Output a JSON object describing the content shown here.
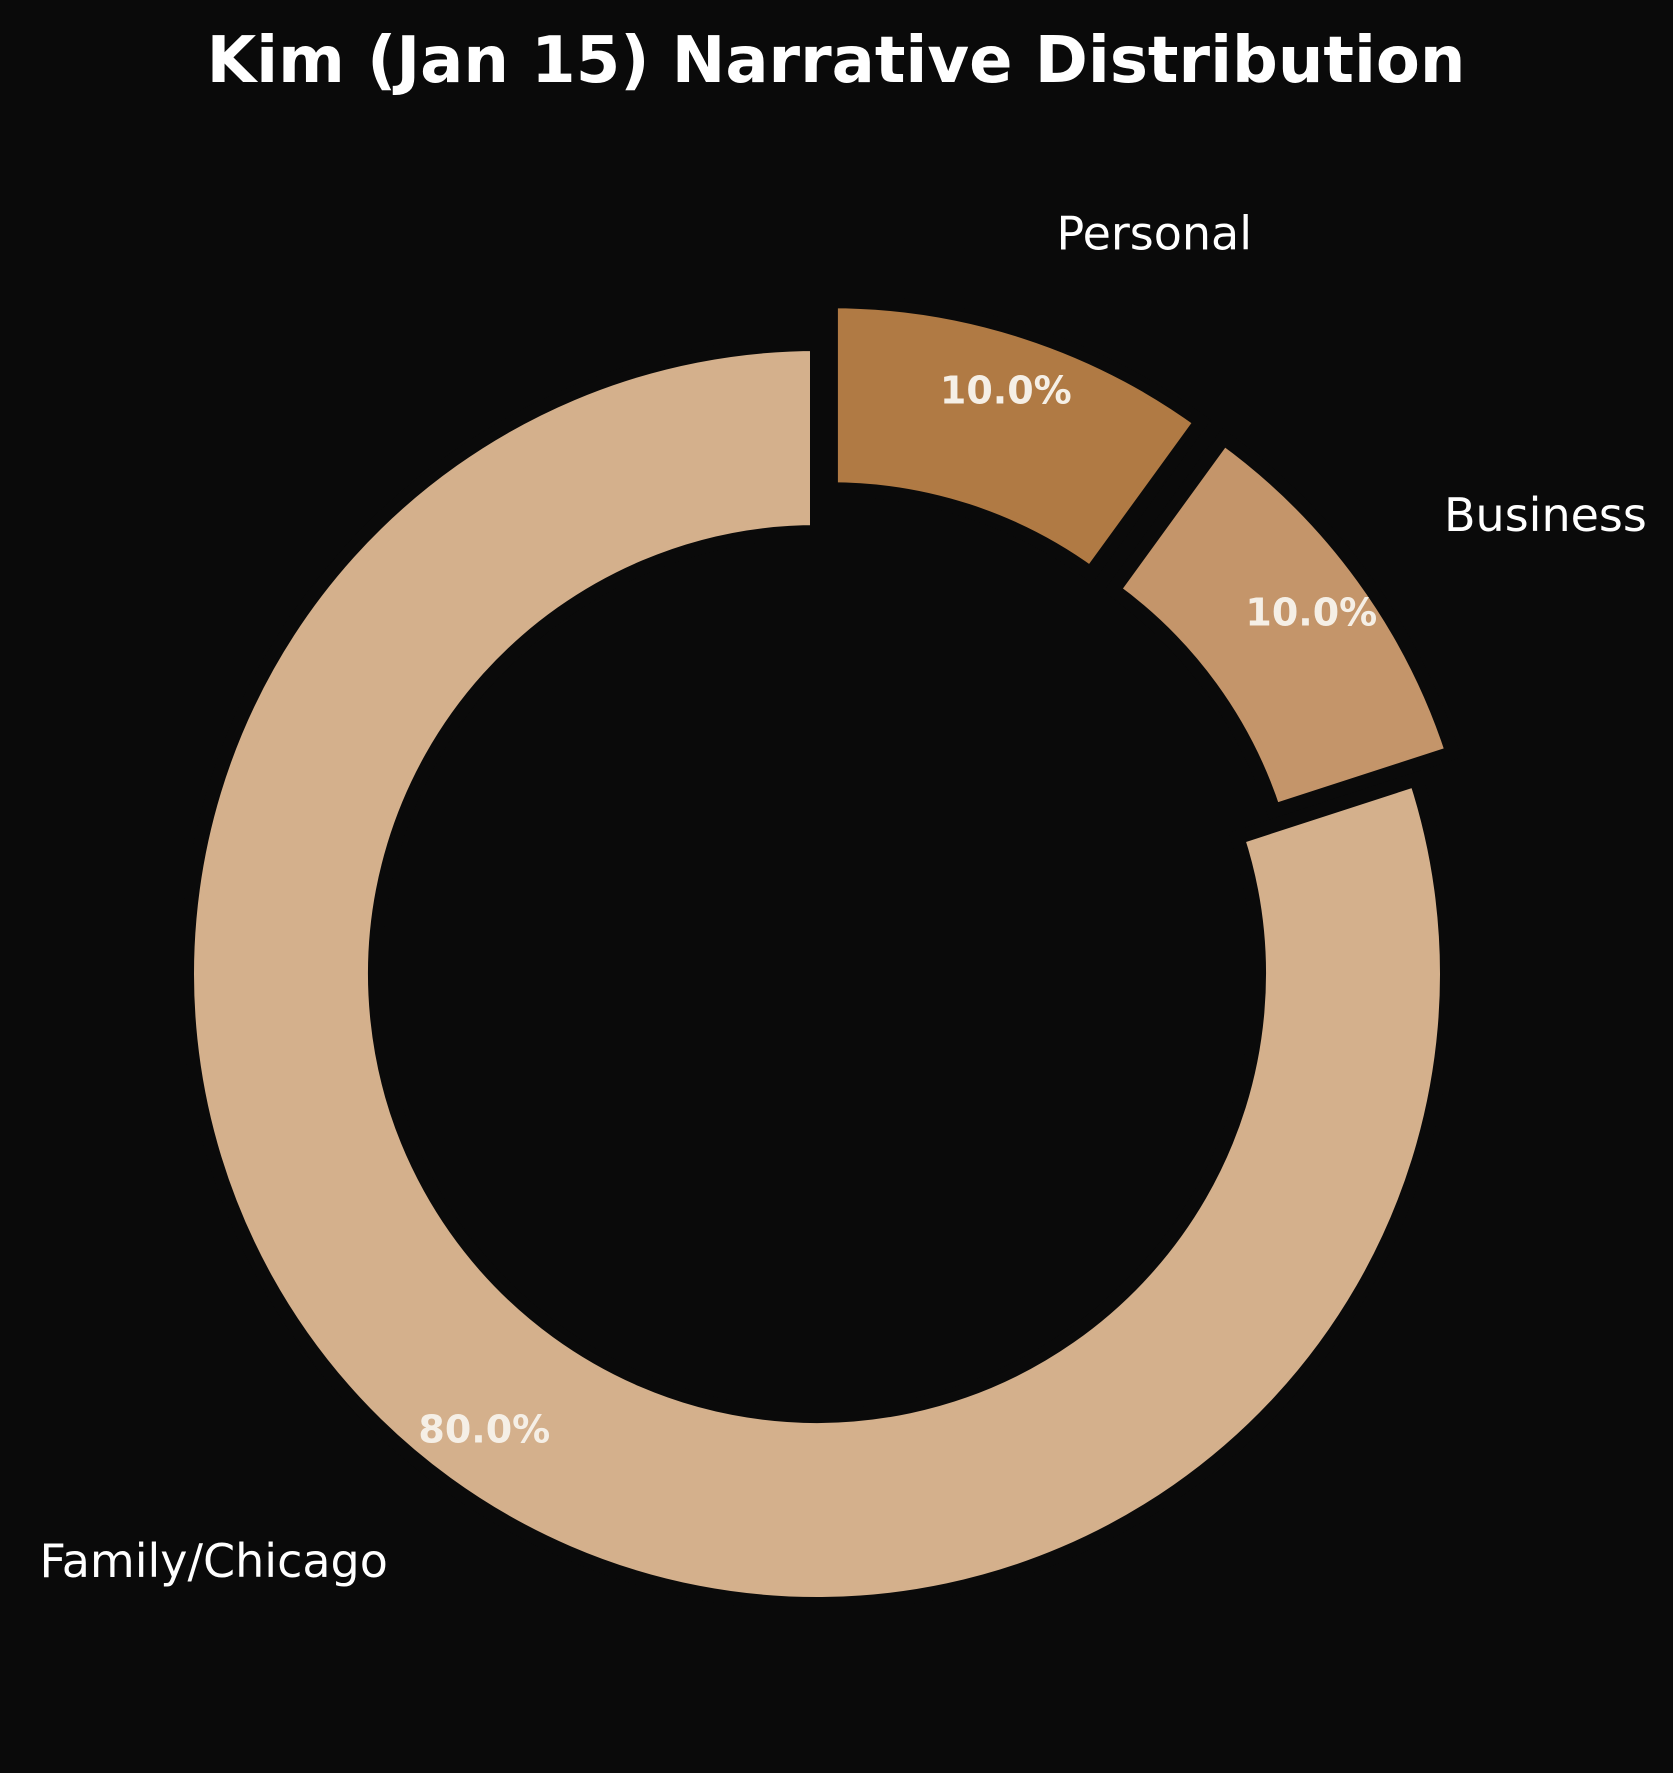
{
  "chart_data": {
    "type": "pie",
    "title": "Kim (Jan 15) Narrative Distribution",
    "donut": true,
    "start_angle": "top",
    "direction": "clockwise",
    "slices": [
      {
        "label": "Personal",
        "value": 10.0,
        "pct_label": "10.0%",
        "color": "#b07a44",
        "exploded": true
      },
      {
        "label": "Business",
        "value": 10.0,
        "pct_label": "10.0%",
        "color": "#c4956a",
        "exploded": true
      },
      {
        "label": "Family/Chicago",
        "value": 80.0,
        "pct_label": "80.0%",
        "color": "#d4b08c",
        "exploded": false
      }
    ],
    "background": "#0a0a0a",
    "text_color": "#ffffff"
  }
}
